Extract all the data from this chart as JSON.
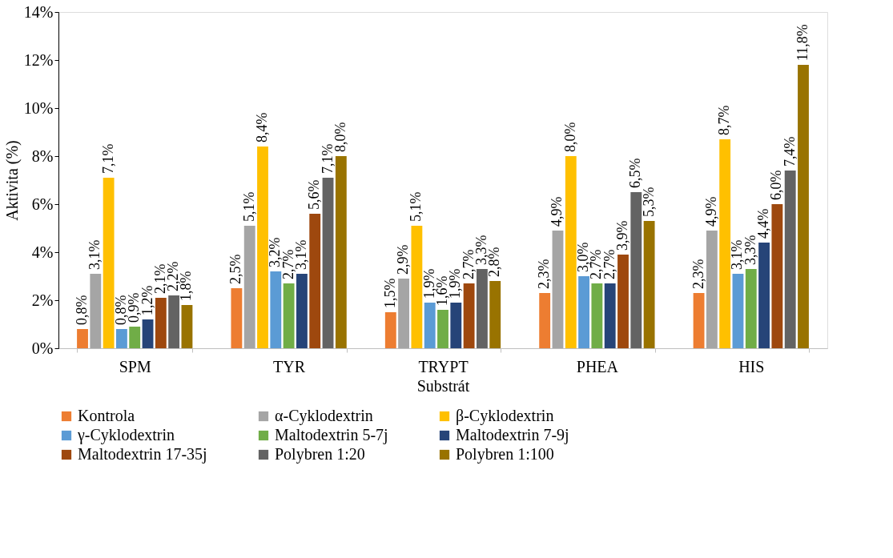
{
  "chart_data": {
    "type": "bar",
    "xlabel": "Substrát",
    "ylabel": "Aktivita (%)",
    "categories": [
      "SPM",
      "TYR",
      "TRYPT",
      "PHEA",
      "HIS"
    ],
    "series": [
      {
        "name": "Kontrola",
        "color": "#ed7d31",
        "values": [
          0.8,
          2.5,
          1.5,
          2.3,
          2.3
        ],
        "value_labels": [
          "0,8%",
          "2,5%",
          "1,5%",
          "2,3%",
          "2,3%"
        ]
      },
      {
        "name": "α-Cyklodextrin",
        "color": "#a5a5a5",
        "values": [
          3.1,
          5.1,
          2.9,
          4.9,
          4.9
        ],
        "value_labels": [
          "3,1%",
          "5,1%",
          "2,9%",
          "4,9%",
          "4,9%"
        ]
      },
      {
        "name": "β-Cyklodextrin",
        "color": "#ffc000",
        "values": [
          7.1,
          8.4,
          5.1,
          8.0,
          8.7
        ],
        "value_labels": [
          "7,1%",
          "8,4%",
          "5,1%",
          "8,0%",
          "8,7%"
        ]
      },
      {
        "name": "γ-Cyklodextrin",
        "color": "#5b9bd5",
        "values": [
          0.8,
          3.2,
          1.9,
          3.0,
          3.1
        ],
        "value_labels": [
          "0,8%",
          "3,2%",
          "1,9%",
          "3,0%",
          "3,1%"
        ]
      },
      {
        "name": "Maltodextrin 5-7j",
        "color": "#70ad47",
        "values": [
          0.9,
          2.7,
          1.6,
          2.7,
          3.3
        ],
        "value_labels": [
          "0,9%",
          "2,7%",
          "1,6%",
          "2,7%",
          "3,3%"
        ]
      },
      {
        "name": "Maltodextrin 7-9j",
        "color": "#264478",
        "values": [
          1.2,
          3.1,
          1.9,
          2.7,
          4.4
        ],
        "value_labels": [
          "1,2%",
          "3,1%",
          "1,9%",
          "2,7%",
          "4,4%"
        ]
      },
      {
        "name": "Maltodextrin 17-35j",
        "color": "#9e480e",
        "values": [
          2.1,
          5.6,
          2.7,
          3.9,
          6.0
        ],
        "value_labels": [
          "2,1%",
          "5,6%",
          "2,7%",
          "3,9%",
          "6,0%"
        ]
      },
      {
        "name": "Polybren 1:20",
        "color": "#636363",
        "values": [
          2.2,
          7.1,
          3.3,
          6.5,
          7.4
        ],
        "value_labels": [
          "2,2%",
          "7,1%",
          "3,3%",
          "6,5%",
          "7,4%"
        ]
      },
      {
        "name": "Polybren 1:100",
        "color": "#997300",
        "values": [
          1.8,
          8.0,
          2.8,
          5.3,
          11.8
        ],
        "value_labels": [
          "1,8%",
          "8,0%",
          "2,8%",
          "5,3%",
          "11,8%"
        ]
      }
    ],
    "ylim": [
      0,
      14
    ],
    "yticks": [
      {
        "value": 0,
        "label": "0%"
      },
      {
        "value": 2,
        "label": "2%"
      },
      {
        "value": 4,
        "label": "4%"
      },
      {
        "value": 6,
        "label": "6%"
      },
      {
        "value": 8,
        "label": "8%"
      },
      {
        "value": 10,
        "label": "10%"
      },
      {
        "value": 12,
        "label": "12%"
      },
      {
        "value": 14,
        "label": "14%"
      }
    ],
    "grid": false,
    "legend": "bottom"
  }
}
